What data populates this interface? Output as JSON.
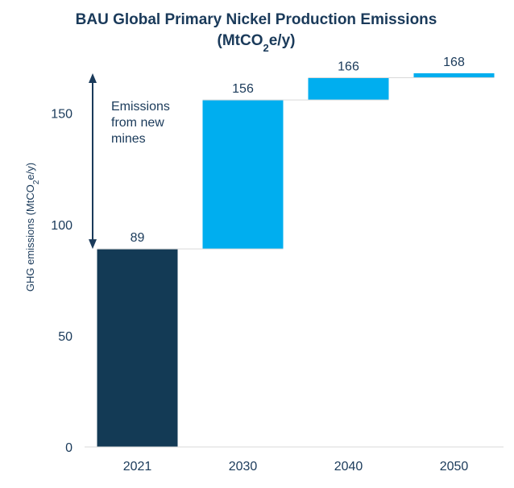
{
  "chart_data": {
    "type": "bar",
    "subtype": "waterfall",
    "title_line1": "BAU Global Primary Nickel Production Emissions",
    "title_line2": {
      "pre": "(MtCO",
      "sub": "2",
      "post": "e/y)"
    },
    "ylabel": {
      "pre": "GHG emissions (MtCO",
      "sub": "2",
      "post": "e/y)"
    },
    "xlabel": "",
    "categories": [
      "2021",
      "2030",
      "2040",
      "2050"
    ],
    "values": [
      89,
      156,
      166,
      168
    ],
    "bar_colors": [
      "#133a55",
      "#00aeef",
      "#00aeef",
      "#00aeef"
    ],
    "ylim": [
      0,
      175
    ],
    "yticks": [
      0,
      50,
      100,
      150
    ],
    "grid": false,
    "legend": "none",
    "annotation": {
      "lines": [
        "Emissions",
        "from new",
        "mines"
      ],
      "from": 89,
      "to": 168
    }
  }
}
